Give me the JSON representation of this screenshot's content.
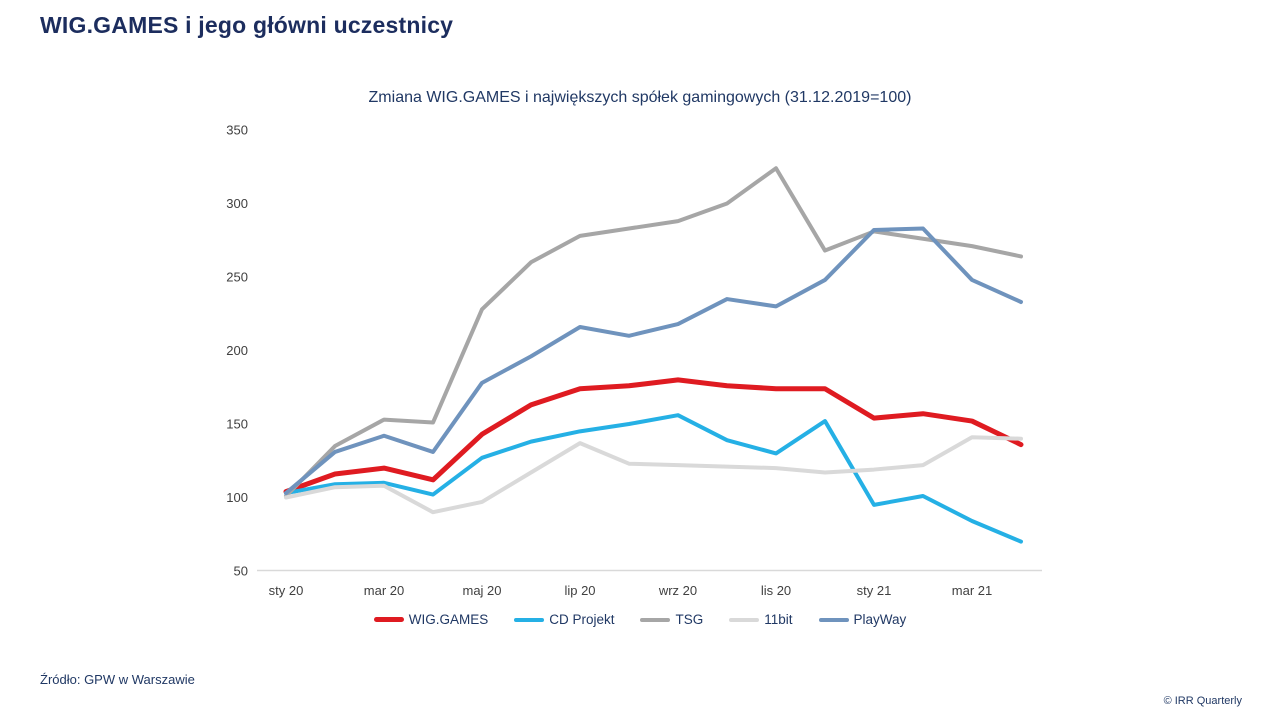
{
  "page": {
    "title": "WIG.GAMES i jego główni uczestnicy",
    "source": "Źródło: GPW w Warszawie",
    "copyright": "© IRR Quarterly"
  },
  "colors": {
    "title_navy": "#1c2d5e",
    "text_navy": "#203864",
    "tick_label": "#404040",
    "axis_line": "#d9d9d9"
  },
  "chart_data": {
    "type": "line",
    "title": "Zmiana WIG.GAMES i największych spółek gamingowych (31.12.2019=100)",
    "xlabel": "",
    "ylabel": "",
    "ylim": [
      50,
      350
    ],
    "yticks": [
      50,
      100,
      150,
      200,
      250,
      300,
      350
    ],
    "grid": false,
    "legend_position": "bottom",
    "n_points": 16,
    "x_tick_labels": [
      "sty 20",
      "mar 20",
      "maj 20",
      "lip 20",
      "wrz 20",
      "lis 20",
      "sty 21",
      "mar 21"
    ],
    "x_tick_indices": [
      0,
      2,
      4,
      6,
      8,
      10,
      12,
      14
    ],
    "series": [
      {
        "name": "WIG.GAMES",
        "color": "#df1b21",
        "stroke_width": 5,
        "values": [
          104,
          116,
          120,
          112,
          143,
          163,
          174,
          176,
          180,
          176,
          174,
          174,
          154,
          157,
          152,
          136
        ]
      },
      {
        "name": "CD Projekt",
        "color": "#25b0e5",
        "stroke_width": 4,
        "values": [
          103,
          109,
          110,
          102,
          127,
          138,
          145,
          150,
          156,
          139,
          130,
          152,
          95,
          101,
          84,
          70
        ]
      },
      {
        "name": "TSG",
        "color": "#a6a6a6",
        "stroke_width": 4,
        "values": [
          101,
          135,
          153,
          151,
          228,
          260,
          278,
          283,
          288,
          300,
          324,
          268,
          281,
          276,
          271,
          264
        ]
      },
      {
        "name": "11bit",
        "color": "#d9d9d9",
        "stroke_width": 4,
        "values": [
          100,
          107,
          108,
          90,
          97,
          117,
          137,
          123,
          122,
          121,
          120,
          117,
          119,
          122,
          141,
          140
        ]
      },
      {
        "name": "PlayWay",
        "color": "#6f93bd",
        "stroke_width": 4,
        "values": [
          103,
          131,
          142,
          131,
          178,
          196,
          216,
          210,
          218,
          235,
          230,
          248,
          282,
          283,
          248,
          233
        ]
      }
    ]
  }
}
